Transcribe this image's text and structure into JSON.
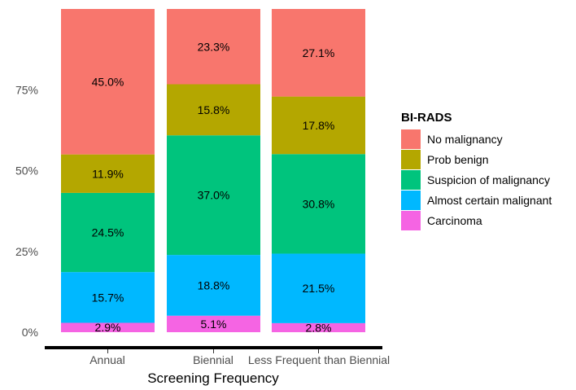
{
  "chart_data": {
    "type": "bar",
    "stacked": true,
    "categories": [
      "Annual",
      "Biennial",
      "Less Frequent than Biennial"
    ],
    "series": [
      {
        "name": "Carcinoma",
        "color": "#F564E3",
        "values": [
          2.9,
          5.1,
          2.8
        ],
        "labels": [
          "2.9%",
          "5.1%",
          "2.8%"
        ]
      },
      {
        "name": "Almost certain malignant",
        "color": "#00B8FF",
        "values": [
          15.7,
          18.8,
          21.5
        ],
        "labels": [
          "15.7%",
          "18.8%",
          "21.5%"
        ]
      },
      {
        "name": "Suspicion of malignancy",
        "color": "#00C47D",
        "values": [
          24.5,
          37.0,
          30.8
        ],
        "labels": [
          "24.5%",
          "37.0%",
          "30.8%"
        ]
      },
      {
        "name": "Prob benign",
        "color": "#B4A700",
        "values": [
          11.9,
          15.8,
          17.8
        ],
        "labels": [
          "11.9%",
          "15.8%",
          "17.8%"
        ]
      },
      {
        "name": "No malignancy",
        "color": "#F8766D",
        "values": [
          45.0,
          23.3,
          27.1
        ],
        "labels": [
          "45.0%",
          "23.3%",
          "27.1%"
        ]
      }
    ],
    "xlabel": "Screening Frequency",
    "ylabel": "",
    "ylim": [
      0,
      100
    ],
    "yticks": [
      0,
      25,
      50,
      75
    ],
    "ytick_labels": [
      "0%",
      "25%",
      "50%",
      "75%"
    ],
    "legend_title": "BI-RADS",
    "legend_order": [
      "No malignancy",
      "Prob benign",
      "Suspicion of malignancy",
      "Almost certain malignant",
      "Carcinoma"
    ],
    "legend_position": "right",
    "grid": false
  }
}
